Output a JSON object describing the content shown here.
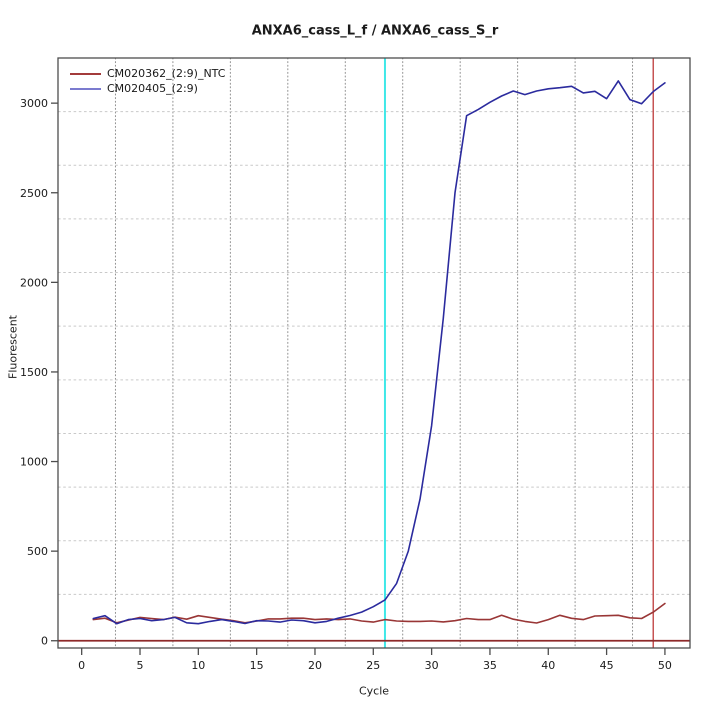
{
  "title": "ANXA6_cass_L_f / ANXA6_cass_S_r",
  "axes": {
    "x_label": "Cycle",
    "y_label": "Fluorescent"
  },
  "legend": {
    "items": [
      {
        "label": "CM020362_(2:9)_NTC",
        "color": "#A33B3B"
      },
      {
        "label": "CM020405_(2:9)",
        "color": "#7B7BCF"
      }
    ]
  },
  "chart_data": {
    "type": "line",
    "title": "ANXA6_cass_L_f / ANXA6_cass_S_r",
    "xlabel": "Cycle",
    "ylabel": "Fluorescent",
    "x": [
      1,
      2,
      3,
      4,
      5,
      6,
      7,
      8,
      9,
      10,
      11,
      12,
      13,
      14,
      15,
      16,
      17,
      18,
      19,
      20,
      21,
      22,
      23,
      24,
      25,
      26,
      27,
      28,
      29,
      30,
      31,
      32,
      33,
      34,
      35,
      36,
      37,
      38,
      39,
      40,
      41,
      42,
      43,
      44,
      45,
      46,
      47,
      48,
      49,
      50
    ],
    "series": [
      {
        "name": "CM020362_(2:9)_NTC",
        "color": "#993636",
        "values": [
          118,
          126,
          100,
          115,
          130,
          124,
          118,
          132,
          120,
          140,
          130,
          120,
          112,
          100,
          110,
          122,
          122,
          126,
          126,
          118,
          122,
          118,
          122,
          110,
          104,
          118,
          110,
          108,
          108,
          110,
          105,
          112,
          124,
          118,
          118,
          142,
          120,
          108,
          99,
          118,
          142,
          125,
          118,
          138,
          140,
          142,
          128,
          124,
          160,
          208
        ]
      },
      {
        "name": "CM020405_(2:9)",
        "color": "#2B2B9E",
        "values": [
          124,
          140,
          95,
          118,
          124,
          112,
          118,
          130,
          100,
          95,
          108,
          118,
          108,
          96,
          112,
          110,
          104,
          116,
          112,
          100,
          108,
          126,
          141,
          160,
          190,
          228,
          320,
          500,
          790,
          1200,
          1800,
          2500,
          2930,
          2965,
          3005,
          3040,
          3068,
          3048,
          3068,
          3080,
          3086,
          3094,
          3057,
          3066,
          3025,
          3124,
          3020,
          2997,
          3065,
          3113
        ]
      }
    ],
    "x_ticks": [
      0,
      5,
      10,
      15,
      20,
      25,
      30,
      35,
      40,
      45,
      50
    ],
    "y_ticks": [
      0,
      500,
      1000,
      1500,
      2000,
      2500,
      3000
    ],
    "x_usr": [
      -2.03,
      52.15
    ],
    "y_usr": [
      -40.5,
      3252
    ],
    "grid_on": true,
    "grid": {
      "nx": 11,
      "ny": 11,
      "v_color": "#8F8F8F",
      "h_color": "#C9C9C9"
    },
    "vlines": [
      {
        "x": 26,
        "color": "#3FE8E8",
        "width": 2,
        "name": "cyan-cycle-marker-line"
      },
      {
        "x": 49,
        "color": "#C65353",
        "width": 1.5,
        "name": "red-cycle-marker-line"
      }
    ],
    "hlines": [
      {
        "y": 0,
        "color": "#8E2929",
        "width": 1.8,
        "name": "zero-threshold-line"
      }
    ],
    "legend_position": "top-left",
    "frame_color": "#4D4D4D"
  }
}
